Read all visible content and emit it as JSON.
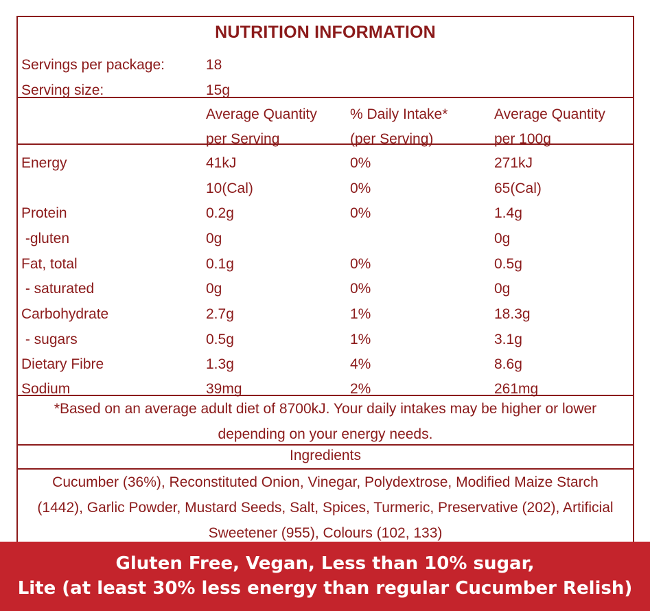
{
  "title": "NUTRITION INFORMATION",
  "servings": {
    "label": "Servings per package:",
    "value": "18"
  },
  "serving_size": {
    "label": "Serving size:",
    "value": "15g"
  },
  "headers": {
    "col1_line1": "Average Quantity",
    "col1_line2": "per Serving",
    "col2_line1": "% Daily Intake*",
    "col2_line2": "(per Serving)",
    "col3_line1": "Average Quantity",
    "col3_line2": "per 100g"
  },
  "rows": [
    {
      "name": "Energy",
      "per_serving": "41kJ",
      "daily": "0%",
      "per_100g": "271kJ"
    },
    {
      "name": "",
      "per_serving": "10(Cal)",
      "daily": "0%",
      "per_100g": "65(Cal)"
    },
    {
      "name": "Protein",
      "per_serving": "0.2g",
      "daily": "0%",
      "per_100g": "1.4g"
    },
    {
      "name": " -gluten",
      "per_serving": "0g",
      "daily": "",
      "per_100g": "0g"
    },
    {
      "name": "Fat, total",
      "per_serving": "0.1g",
      "daily": "0%",
      "per_100g": "0.5g"
    },
    {
      "name": " - saturated",
      "per_serving": "0g",
      "daily": "0%",
      "per_100g": "0g"
    },
    {
      "name": "Carbohydrate",
      "per_serving": "2.7g",
      "daily": "1%",
      "per_100g": "18.3g"
    },
    {
      "name": " - sugars",
      "per_serving": "0.5g",
      "daily": "1%",
      "per_100g": "3.1g"
    },
    {
      "name": "Dietary Fibre",
      "per_serving": "1.3g",
      "daily": "4%",
      "per_100g": "8.6g"
    },
    {
      "name": "Sodium",
      "per_serving": "39mg",
      "daily": "2%",
      "per_100g": "261mg"
    }
  ],
  "footnote": "*Based on an average adult diet of 8700kJ. Your daily intakes may be higher or lower depending on your energy needs.",
  "ingredients_heading": "Ingredients",
  "ingredients_text": "Cucumber (36%), Reconstituted Onion, Vinegar, Polydextrose, Modified Maize Starch (1442), Garlic Powder, Mustard Seeds, Salt, Spices, Turmeric, Preservative (202), Artificial Sweetener (955), Colours (102, 133)",
  "banner": {
    "line1": "Gluten Free, Vegan, Less than 10% sugar,",
    "line2": "Lite (at least 30% less energy than regular Cucumber Relish)"
  },
  "colors": {
    "text": "#8b1a1a",
    "banner_bg": "#c4242c",
    "banner_text": "#ffffff"
  }
}
